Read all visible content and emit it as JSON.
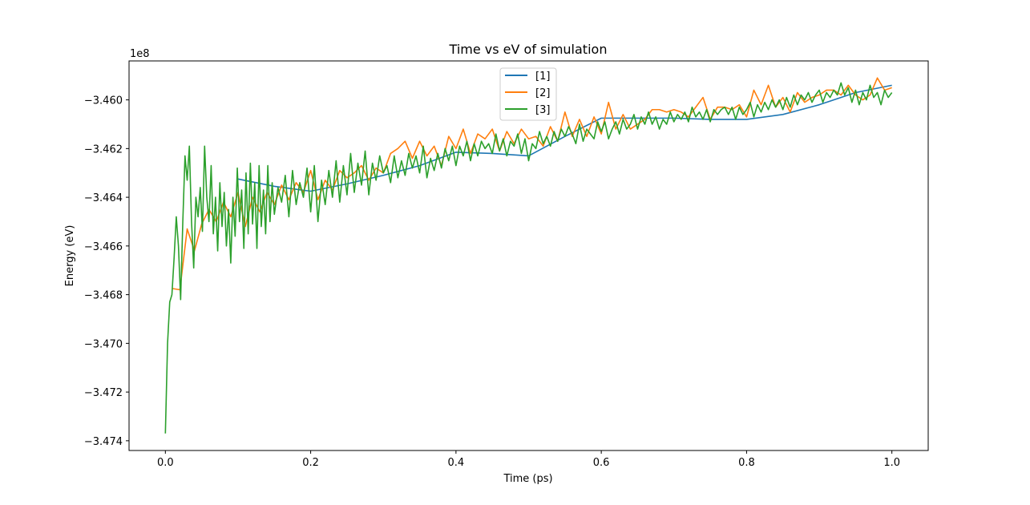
{
  "chart_data": {
    "type": "line",
    "title": "Time vs eV of simulation",
    "xlabel": "Time (ps)",
    "ylabel": "Energy (eV)",
    "offset_label": "1e8",
    "xlim": [
      -0.05,
      1.05
    ],
    "ylim": [
      -3.4744,
      -3.4584
    ],
    "x_ticks": [
      0.0,
      0.2,
      0.4,
      0.6,
      0.8,
      1.0
    ],
    "x_tick_labels": [
      "0.0",
      "0.2",
      "0.4",
      "0.6",
      "0.8",
      "1.0"
    ],
    "y_ticks": [
      -3.474,
      -3.472,
      -3.47,
      -3.468,
      -3.466,
      -3.464,
      -3.462,
      -3.46
    ],
    "y_tick_labels": [
      "−3.474",
      "−3.472",
      "−3.470",
      "−3.468",
      "−3.466",
      "−3.464",
      "−3.462",
      "−3.460"
    ],
    "grid": false,
    "legend_position": "upper-center",
    "series": [
      {
        "name": "[1]",
        "color": "#1f77b4",
        "x": [
          0.1,
          0.15,
          0.2,
          0.25,
          0.3,
          0.35,
          0.4,
          0.45,
          0.5,
          0.55,
          0.6,
          0.65,
          0.7,
          0.75,
          0.8,
          0.85,
          0.9,
          0.95,
          1.0
        ],
        "y": [
          -3.46325,
          -3.46355,
          -3.46375,
          -3.46345,
          -3.4631,
          -3.4627,
          -3.46215,
          -3.4622,
          -3.4623,
          -3.4615,
          -3.46075,
          -3.46075,
          -3.46075,
          -3.4608,
          -3.4608,
          -3.4606,
          -3.4602,
          -3.4597,
          -3.4594
        ]
      },
      {
        "name": "[2]",
        "color": "#ff7f0e",
        "x": [
          0.01,
          0.02,
          0.03,
          0.04,
          0.05,
          0.06,
          0.07,
          0.08,
          0.09,
          0.1,
          0.11,
          0.12,
          0.13,
          0.14,
          0.15,
          0.16,
          0.17,
          0.18,
          0.19,
          0.2,
          0.21,
          0.22,
          0.23,
          0.24,
          0.25,
          0.26,
          0.27,
          0.28,
          0.29,
          0.3,
          0.31,
          0.32,
          0.33,
          0.34,
          0.35,
          0.36,
          0.37,
          0.38,
          0.39,
          0.4,
          0.41,
          0.42,
          0.43,
          0.44,
          0.45,
          0.46,
          0.47,
          0.48,
          0.49,
          0.5,
          0.51,
          0.52,
          0.53,
          0.54,
          0.55,
          0.56,
          0.57,
          0.58,
          0.59,
          0.6,
          0.61,
          0.62,
          0.63,
          0.64,
          0.65,
          0.66,
          0.67,
          0.68,
          0.69,
          0.7,
          0.71,
          0.72,
          0.73,
          0.74,
          0.75,
          0.76,
          0.77,
          0.78,
          0.79,
          0.8,
          0.81,
          0.82,
          0.83,
          0.84,
          0.85,
          0.86,
          0.87,
          0.88,
          0.89,
          0.9,
          0.91,
          0.92,
          0.93,
          0.94,
          0.95,
          0.96,
          0.97,
          0.98,
          0.99,
          1.0
        ],
        "y": [
          -3.46775,
          -3.4678,
          -3.4653,
          -3.4662,
          -3.4651,
          -3.4645,
          -3.465,
          -3.4642,
          -3.4648,
          -3.4638,
          -3.4652,
          -3.464,
          -3.4646,
          -3.4638,
          -3.4643,
          -3.4635,
          -3.4641,
          -3.4634,
          -3.4638,
          -3.4629,
          -3.4641,
          -3.4633,
          -3.4637,
          -3.4629,
          -3.4632,
          -3.463,
          -3.4627,
          -3.4633,
          -3.4628,
          -3.463,
          -3.4622,
          -3.462,
          -3.4617,
          -3.4624,
          -3.4617,
          -3.4623,
          -3.4619,
          -3.4627,
          -3.4615,
          -3.462,
          -3.4612,
          -3.4622,
          -3.4614,
          -3.4616,
          -3.4612,
          -3.4621,
          -3.4613,
          -3.4618,
          -3.4612,
          -3.4616,
          -3.4615,
          -3.4619,
          -3.4611,
          -3.4617,
          -3.4605,
          -3.4615,
          -3.4608,
          -3.4615,
          -3.4607,
          -3.4614,
          -3.4601,
          -3.4612,
          -3.4606,
          -3.4612,
          -3.461,
          -3.4608,
          -3.4604,
          -3.4604,
          -3.4605,
          -3.4604,
          -3.4605,
          -3.4607,
          -3.4603,
          -3.4599,
          -3.4608,
          -3.4603,
          -3.4603,
          -3.4604,
          -3.4602,
          -3.4607,
          -3.4596,
          -3.4602,
          -3.4594,
          -3.4603,
          -3.4599,
          -3.4605,
          -3.4597,
          -3.4601,
          -3.4599,
          -3.4598,
          -3.4596,
          -3.4596,
          -3.4598,
          -3.4594,
          -3.4598,
          -3.46,
          -3.4598,
          -3.4591,
          -3.4596,
          -3.4595
        ]
      },
      {
        "name": "[3]",
        "color": "#2ca02c",
        "x": [
          0.0,
          0.003,
          0.006,
          0.009,
          0.012,
          0.015,
          0.018,
          0.021,
          0.024,
          0.027,
          0.03,
          0.033,
          0.036,
          0.039,
          0.042,
          0.045,
          0.048,
          0.051,
          0.054,
          0.057,
          0.06,
          0.063,
          0.066,
          0.069,
          0.072,
          0.075,
          0.078,
          0.081,
          0.084,
          0.087,
          0.09,
          0.093,
          0.096,
          0.099,
          0.102,
          0.105,
          0.108,
          0.111,
          0.114,
          0.117,
          0.12,
          0.123,
          0.126,
          0.129,
          0.132,
          0.135,
          0.138,
          0.141,
          0.144,
          0.147,
          0.15,
          0.155,
          0.16,
          0.165,
          0.17,
          0.175,
          0.18,
          0.185,
          0.19,
          0.195,
          0.2,
          0.205,
          0.21,
          0.215,
          0.22,
          0.225,
          0.23,
          0.235,
          0.24,
          0.245,
          0.25,
          0.255,
          0.26,
          0.265,
          0.27,
          0.275,
          0.28,
          0.285,
          0.29,
          0.295,
          0.3,
          0.305,
          0.31,
          0.315,
          0.32,
          0.325,
          0.33,
          0.335,
          0.34,
          0.345,
          0.35,
          0.355,
          0.36,
          0.365,
          0.37,
          0.375,
          0.38,
          0.385,
          0.39,
          0.395,
          0.4,
          0.405,
          0.41,
          0.415,
          0.42,
          0.425,
          0.43,
          0.435,
          0.44,
          0.445,
          0.45,
          0.455,
          0.46,
          0.465,
          0.47,
          0.475,
          0.48,
          0.485,
          0.49,
          0.495,
          0.5,
          0.505,
          0.51,
          0.515,
          0.52,
          0.525,
          0.53,
          0.535,
          0.54,
          0.545,
          0.55,
          0.555,
          0.56,
          0.565,
          0.57,
          0.575,
          0.58,
          0.585,
          0.59,
          0.595,
          0.6,
          0.605,
          0.61,
          0.615,
          0.62,
          0.625,
          0.63,
          0.635,
          0.64,
          0.645,
          0.65,
          0.655,
          0.66,
          0.665,
          0.67,
          0.675,
          0.68,
          0.685,
          0.69,
          0.695,
          0.7,
          0.705,
          0.71,
          0.715,
          0.72,
          0.725,
          0.73,
          0.735,
          0.74,
          0.745,
          0.75,
          0.755,
          0.76,
          0.765,
          0.77,
          0.775,
          0.78,
          0.785,
          0.79,
          0.795,
          0.8,
          0.805,
          0.81,
          0.815,
          0.82,
          0.825,
          0.83,
          0.835,
          0.84,
          0.845,
          0.85,
          0.855,
          0.86,
          0.865,
          0.87,
          0.875,
          0.88,
          0.885,
          0.89,
          0.895,
          0.9,
          0.905,
          0.91,
          0.915,
          0.92,
          0.925,
          0.93,
          0.935,
          0.94,
          0.945,
          0.95,
          0.955,
          0.96,
          0.965,
          0.97,
          0.975,
          0.98,
          0.985,
          0.99,
          0.995,
          1.0
        ],
        "y": [
          -3.4737,
          -3.47,
          -3.4683,
          -3.468,
          -3.4665,
          -3.4648,
          -3.466,
          -3.4682,
          -3.465,
          -3.4623,
          -3.4633,
          -3.4619,
          -3.465,
          -3.4669,
          -3.464,
          -3.4648,
          -3.4636,
          -3.4654,
          -3.4619,
          -3.464,
          -3.465,
          -3.4627,
          -3.4655,
          -3.464,
          -3.4662,
          -3.4634,
          -3.4652,
          -3.4638,
          -3.466,
          -3.4645,
          -3.4667,
          -3.464,
          -3.4656,
          -3.4628,
          -3.465,
          -3.4637,
          -3.4661,
          -3.463,
          -3.4655,
          -3.4626,
          -3.4651,
          -3.4634,
          -3.4661,
          -3.4627,
          -3.4652,
          -3.4637,
          -3.4655,
          -3.4627,
          -3.465,
          -3.4634,
          -3.4647,
          -3.4636,
          -3.4642,
          -3.4631,
          -3.4648,
          -3.4629,
          -3.4643,
          -3.4634,
          -3.464,
          -3.4628,
          -3.4646,
          -3.4627,
          -3.465,
          -3.4633,
          -3.4643,
          -3.4629,
          -3.464,
          -3.4625,
          -3.4642,
          -3.4627,
          -3.4639,
          -3.4622,
          -3.4638,
          -3.4626,
          -3.4635,
          -3.4621,
          -3.4639,
          -3.4626,
          -3.4633,
          -3.4623,
          -3.463,
          -3.4627,
          -3.4634,
          -3.4623,
          -3.4632,
          -3.4625,
          -3.4631,
          -3.4622,
          -3.4628,
          -3.4623,
          -3.463,
          -3.4619,
          -3.4632,
          -3.4624,
          -3.4629,
          -3.4622,
          -3.4628,
          -3.462,
          -3.4625,
          -3.4619,
          -3.4627,
          -3.4619,
          -3.4623,
          -3.4617,
          -3.4625,
          -3.4618,
          -3.4623,
          -3.4617,
          -3.462,
          -3.4618,
          -3.4622,
          -3.4614,
          -3.4621,
          -3.4616,
          -3.4623,
          -3.4617,
          -3.4619,
          -3.4614,
          -3.4622,
          -3.4616,
          -3.4625,
          -3.4618,
          -3.462,
          -3.4613,
          -3.4618,
          -3.4615,
          -3.4619,
          -3.4613,
          -3.4617,
          -3.4612,
          -3.4615,
          -3.4611,
          -3.4614,
          -3.4618,
          -3.461,
          -3.4617,
          -3.4612,
          -3.4614,
          -3.4616,
          -3.4609,
          -3.4613,
          -3.4609,
          -3.4616,
          -3.4612,
          -3.4609,
          -3.4614,
          -3.4608,
          -3.4612,
          -3.461,
          -3.4606,
          -3.4612,
          -3.4607,
          -3.461,
          -3.4605,
          -3.461,
          -3.4607,
          -3.4612,
          -3.4608,
          -3.461,
          -3.4605,
          -3.4609,
          -3.4606,
          -3.4608,
          -3.4605,
          -3.4609,
          -3.4603,
          -3.4607,
          -3.4605,
          -3.4608,
          -3.4604,
          -3.4609,
          -3.4604,
          -3.4606,
          -3.4604,
          -3.4603,
          -3.4606,
          -3.4603,
          -3.4608,
          -3.4603,
          -3.4606,
          -3.4604,
          -3.4601,
          -3.4607,
          -3.4602,
          -3.4605,
          -3.4601,
          -3.4604,
          -3.46,
          -3.4603,
          -3.46,
          -3.4604,
          -3.4599,
          -3.4603,
          -3.4598,
          -3.4602,
          -3.4598,
          -3.46,
          -3.4597,
          -3.4601,
          -3.4598,
          -3.4596,
          -3.4601,
          -3.4597,
          -3.4599,
          -3.4596,
          -3.4598,
          -3.4593,
          -3.4598,
          -3.4595,
          -3.4601,
          -3.4596,
          -3.4602,
          -3.4597,
          -3.46,
          -3.4594,
          -3.4599,
          -3.4597,
          -3.4602,
          -3.4596,
          -3.4599,
          -3.4597
        ]
      }
    ]
  }
}
